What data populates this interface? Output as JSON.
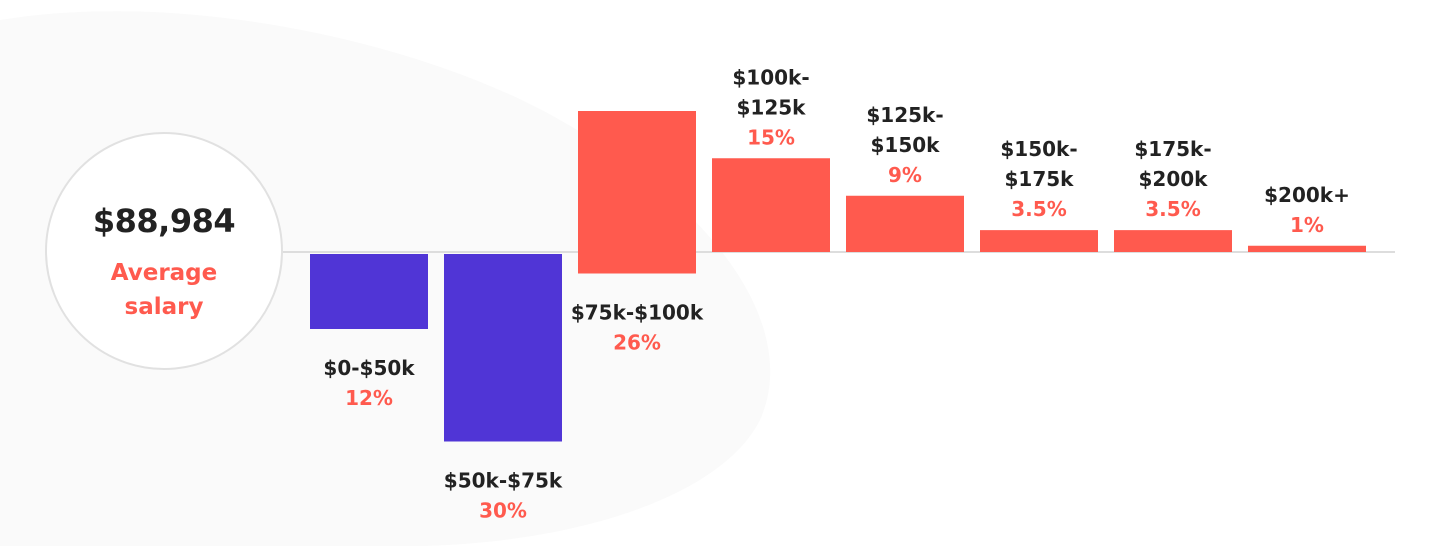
{
  "summary": {
    "value": "$88,984",
    "label": "Average salary"
  },
  "colors": {
    "below_average": "#5035d6",
    "above_average": "#ff5a4e",
    "category_text": "#222222",
    "percent_text": "#ff5a4e",
    "baseline": "#dddddd"
  },
  "chart_data": {
    "type": "bar",
    "categories": [
      "$0-$50k",
      "$50k-$75k",
      "$75k-$100k",
      "$100k-$125k",
      "$125k-$150k",
      "$150k-$175k",
      "$175k-$200k",
      "$200k+"
    ],
    "category_lines": [
      [
        "$0-$50k"
      ],
      [
        "$50k-$75k"
      ],
      [
        "$75k-$100k"
      ],
      [
        "$100k-",
        "$125k"
      ],
      [
        "$125k-",
        "$150k"
      ],
      [
        "$150k-",
        "$175k"
      ],
      [
        "$175k-",
        "$200k"
      ],
      [
        "$200k+"
      ]
    ],
    "values": [
      12,
      30,
      26,
      15,
      9,
      3.5,
      3.5,
      1
    ],
    "value_labels": [
      "12%",
      "30%",
      "26%",
      "15%",
      "9%",
      "3.5%",
      "3.5%",
      "1%"
    ],
    "unit": "%",
    "direction": [
      "down",
      "down",
      "up",
      "up",
      "up",
      "up",
      "up",
      "up"
    ],
    "grid": false,
    "legend": "none"
  }
}
